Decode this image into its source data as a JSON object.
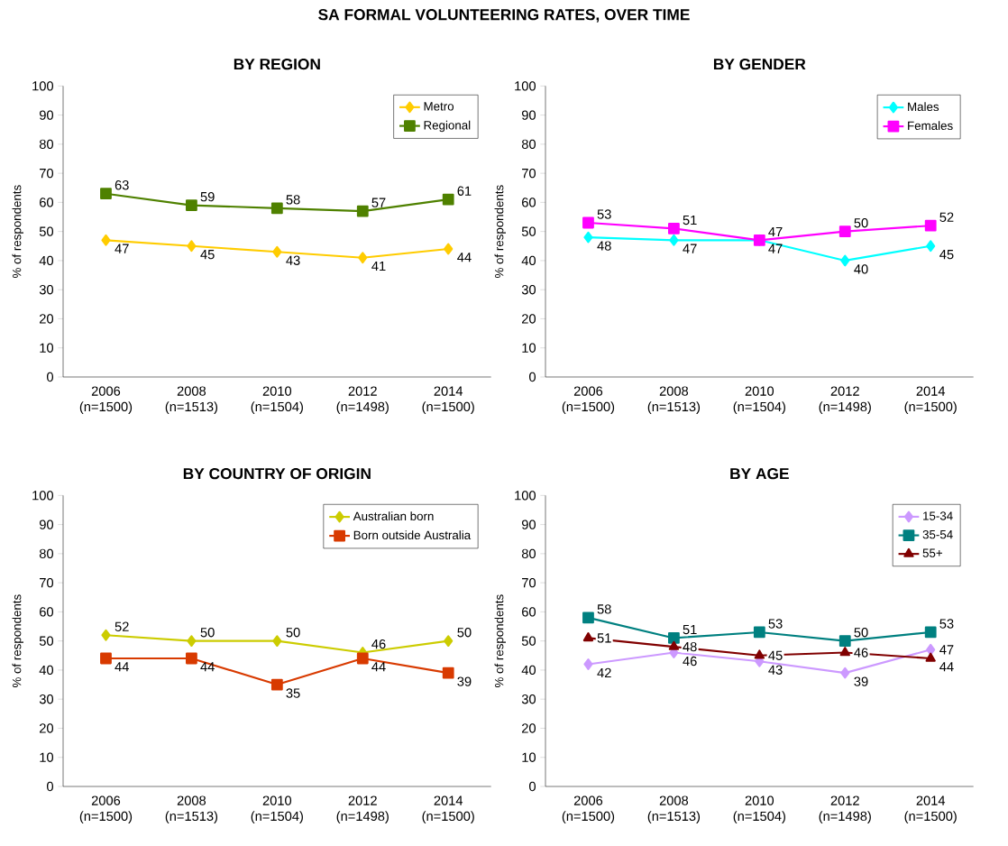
{
  "chart_data": [
    {
      "type": "line",
      "title": "BY REGION",
      "annotations": [
        "SA FORMAL VOLUNTEERING RATES, OVER TIME"
      ],
      "categories": [
        "2006 (n=1500)",
        "2008 (n=1513)",
        "2010 (n=1504)",
        "2012 (n=1498)",
        "2014 (n=1500)"
      ],
      "ylabel": "% of respondents",
      "ylim": [
        0,
        100
      ],
      "yticks": [
        0,
        10,
        20,
        30,
        40,
        50,
        60,
        70,
        80,
        90,
        100
      ],
      "legend": "top right",
      "data_labels": true,
      "series": [
        {
          "name": "Metro",
          "color": "#ffcc00",
          "marker": "diamond",
          "values": [
            47,
            45,
            43,
            41,
            44
          ]
        },
        {
          "name": "Regional",
          "color": "#4f8100",
          "marker": "square",
          "values": [
            63,
            59,
            58,
            57,
            61
          ]
        }
      ]
    },
    {
      "type": "line",
      "title": "BY GENDER",
      "categories": [
        "2006 (n=1500)",
        "2008 (n=1513)",
        "2010 (n=1504)",
        "2012 (n=1498)",
        "2014 (n=1500)"
      ],
      "ylabel": "% of respondents",
      "ylim": [
        0,
        100
      ],
      "yticks": [
        0,
        10,
        20,
        30,
        40,
        50,
        60,
        70,
        80,
        90,
        100
      ],
      "legend": "top right",
      "data_labels": true,
      "series": [
        {
          "name": "Males",
          "color": "#00ffff",
          "marker": "diamond",
          "values": [
            48,
            47,
            47,
            40,
            45
          ]
        },
        {
          "name": "Females",
          "color": "#ff00ff",
          "marker": "square",
          "values": [
            53,
            51,
            47,
            50,
            52
          ]
        }
      ]
    },
    {
      "type": "line",
      "title": "BY COUNTRY OF ORIGIN",
      "categories": [
        "2006 (n=1500)",
        "2008 (n=1513)",
        "2010 (n=1504)",
        "2012 (n=1498)",
        "2014 (n=1500)"
      ],
      "ylabel": "% of respondents",
      "ylim": [
        0,
        100
      ],
      "yticks": [
        0,
        10,
        20,
        30,
        40,
        50,
        60,
        70,
        80,
        90,
        100
      ],
      "legend": "top right",
      "data_labels": true,
      "series": [
        {
          "name": "Australian born",
          "color": "#cccc00",
          "marker": "diamond",
          "values": [
            52,
            50,
            50,
            46,
            50
          ]
        },
        {
          "name": "Born outside Australia",
          "color": "#d83a00",
          "marker": "square",
          "values": [
            44,
            44,
            35,
            44,
            39
          ]
        }
      ]
    },
    {
      "type": "line",
      "title": "BY AGE",
      "categories": [
        "2006 (n=1500)",
        "2008 (n=1513)",
        "2010 (n=1504)",
        "2012 (n=1498)",
        "2014 (n=1500)"
      ],
      "ylabel": "% of respondents",
      "ylim": [
        0,
        100
      ],
      "yticks": [
        0,
        10,
        20,
        30,
        40,
        50,
        60,
        70,
        80,
        90,
        100
      ],
      "legend": "top right",
      "data_labels": true,
      "series": [
        {
          "name": "15-34",
          "color": "#cc99ff",
          "marker": "diamond",
          "values": [
            42,
            46,
            43,
            39,
            47
          ]
        },
        {
          "name": "35-54",
          "color": "#008080",
          "marker": "square",
          "values": [
            58,
            51,
            53,
            50,
            53
          ]
        },
        {
          "name": "55+",
          "color": "#800000",
          "marker": "triangle",
          "values": [
            51,
            48,
            45,
            46,
            44
          ]
        }
      ]
    }
  ]
}
